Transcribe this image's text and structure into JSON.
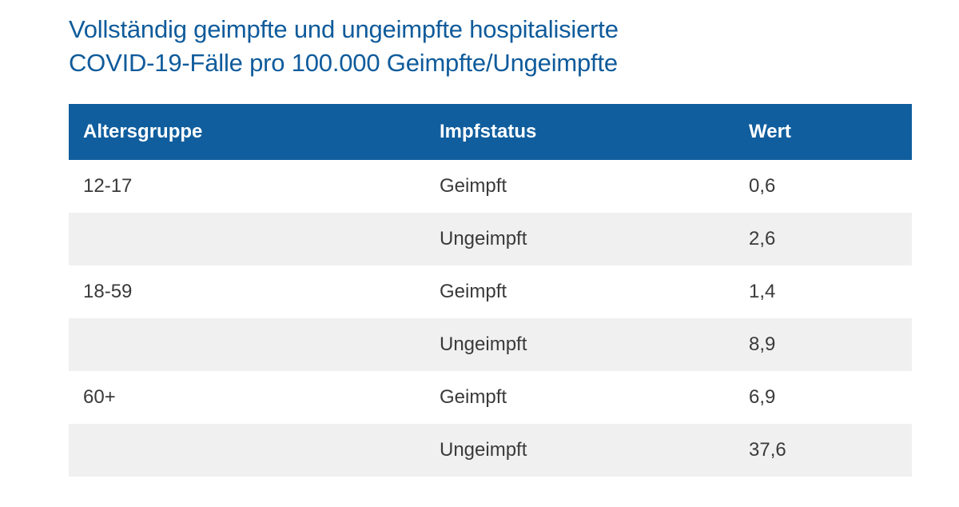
{
  "colors": {
    "title": "#0f5b9b",
    "header_bg": "#105e9e",
    "header_text": "#ffffff",
    "row_alt_bg": "#f0f0f0",
    "body_text": "#3a3a3a"
  },
  "title": {
    "line1": "Vollständig geimpfte und ungeimpfte hospitalisierte",
    "line2": "COVID-19-Fälle pro 100.000 Geimpfte/Ungeimpfte"
  },
  "table": {
    "headers": {
      "age_group": "Altersgruppe",
      "impfstatus": "Impfstatus",
      "wert": "Wert"
    },
    "rows": [
      {
        "age_group": "12-17",
        "impfstatus": "Geimpft",
        "wert": "0,6"
      },
      {
        "age_group": "",
        "impfstatus": "Ungeimpft",
        "wert": "2,6"
      },
      {
        "age_group": "18-59",
        "impfstatus": "Geimpft",
        "wert": "1,4"
      },
      {
        "age_group": "",
        "impfstatus": "Ungeimpft",
        "wert": "8,9"
      },
      {
        "age_group": "60+",
        "impfstatus": "Geimpft",
        "wert": "6,9"
      },
      {
        "age_group": "",
        "impfstatus": "Ungeimpft",
        "wert": "37,6"
      }
    ]
  },
  "chart_data": {
    "type": "table",
    "title": "Vollständig geimpfte und ungeimpfte hospitalisierte COVID-19-Fälle pro 100.000 Geimpfte/Ungeimpfte",
    "columns": [
      "Altersgruppe",
      "Impfstatus",
      "Wert"
    ],
    "rows": [
      [
        "12-17",
        "Geimpft",
        0.6
      ],
      [
        "12-17",
        "Ungeimpft",
        2.6
      ],
      [
        "18-59",
        "Geimpft",
        1.4
      ],
      [
        "18-59",
        "Ungeimpft",
        8.9
      ],
      [
        "60+",
        "Geimpft",
        6.9
      ],
      [
        "60+",
        "Ungeimpft",
        37.6
      ]
    ],
    "notes": "Decimal comma (German locale); age-group label shown only on first row of each pair; alternating row shading"
  }
}
